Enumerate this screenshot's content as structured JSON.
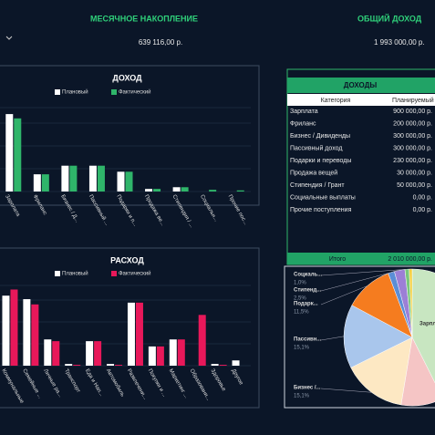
{
  "kpis": [
    {
      "title": "МЕСЯЧНОЕ НАКОПЛЕНИЕ",
      "value": "639 116,00 р."
    },
    {
      "title": "ОБЩИЙ ДОХОД",
      "value": "1 993 000,00 р."
    }
  ],
  "table": {
    "title": "ДОХОДЫ",
    "columns": [
      "Категория",
      "Планируемый"
    ],
    "rows": [
      [
        "Зарплата",
        "900 000,00 р."
      ],
      [
        "Фриланс",
        "200 000,00 р."
      ],
      [
        "Бизнес / Дивиденды",
        "300 000,00 р."
      ],
      [
        "Пассивный доход",
        "300 000,00 р."
      ],
      [
        "Подарки и переводы",
        "230 000,00 р."
      ],
      [
        "Продажа вещей",
        "30 000,00 р."
      ],
      [
        "Стипендия / Грант",
        "50 000,00 р."
      ],
      [
        "Социальные выплаты",
        "0,00 р."
      ],
      [
        "Прочие поступления",
        "0,00 р."
      ]
    ],
    "footer": [
      "Итого",
      "2 010 000,00 р."
    ]
  },
  "chart_data": [
    {
      "type": "bar",
      "title": "ДОХОД",
      "categories": [
        "Зарплата",
        "Фриланс",
        "Бизнес / Д...",
        "Пассивный ...",
        "Подарки и п...",
        "Продажа ве...",
        "Стипендия / ...",
        "Социальн...",
        "Прочие пос..."
      ],
      "series": [
        {
          "name": "Плановый",
          "color": "#ffffff",
          "values": [
            900000,
            200000,
            300000,
            300000,
            230000,
            30000,
            50000,
            0,
            0
          ]
        },
        {
          "name": "Фактический",
          "color": "#2fb56a",
          "values": [
            850000,
            200000,
            300000,
            300000,
            230000,
            30000,
            50000,
            20000,
            13000
          ]
        }
      ],
      "ylim": [
        0,
        1060000
      ],
      "grid": true
    },
    {
      "type": "bar",
      "title": "РАСХОД",
      "categories": [
        "Коммунальные",
        "Семейные ...",
        "Личные ра...",
        "Транспорт",
        "Еда и Нап...",
        "Автомобиль",
        "Развлечени...",
        "Покупки и ...",
        "Маркетинг ...",
        "Образовани...",
        "Здоровье",
        "Другое"
      ],
      "series": [
        {
          "name": "Плановый",
          "color": "#ffffff",
          "values": [
            80,
            76,
            30,
            2,
            28,
            2,
            72,
            22,
            30,
            0,
            2,
            6
          ]
        },
        {
          "name": "Фактический",
          "color": "#e8185a",
          "values": [
            87,
            70,
            28,
            1,
            28,
            1,
            72,
            22,
            30,
            58,
            1,
            0
          ]
        }
      ],
      "ylim": [
        0,
        100
      ],
      "grid": true
    },
    {
      "type": "pie",
      "categories": [
        "Зарплата",
        null,
        "Бизнес /...",
        "Пассивн...",
        "Подарк...",
        null,
        "Стипенд...",
        "Социаль...",
        null
      ],
      "values": [
        42.6,
        10.0,
        15.1,
        15.1,
        11.5,
        1.5,
        2.5,
        1.0,
        0.7
      ],
      "value_labels": [
        null,
        null,
        "15,1%",
        "15,1%",
        "11,5%",
        null,
        "2,5%",
        "1,0%",
        null
      ],
      "colors": [
        "#c8e6c1",
        "#f5c5c5",
        "#fde8c3",
        "#a9c6ec",
        "#f57c1f",
        "#5b8ed6",
        "#9c7fd6",
        "#7ac87a",
        "#f4d03f"
      ]
    }
  ]
}
